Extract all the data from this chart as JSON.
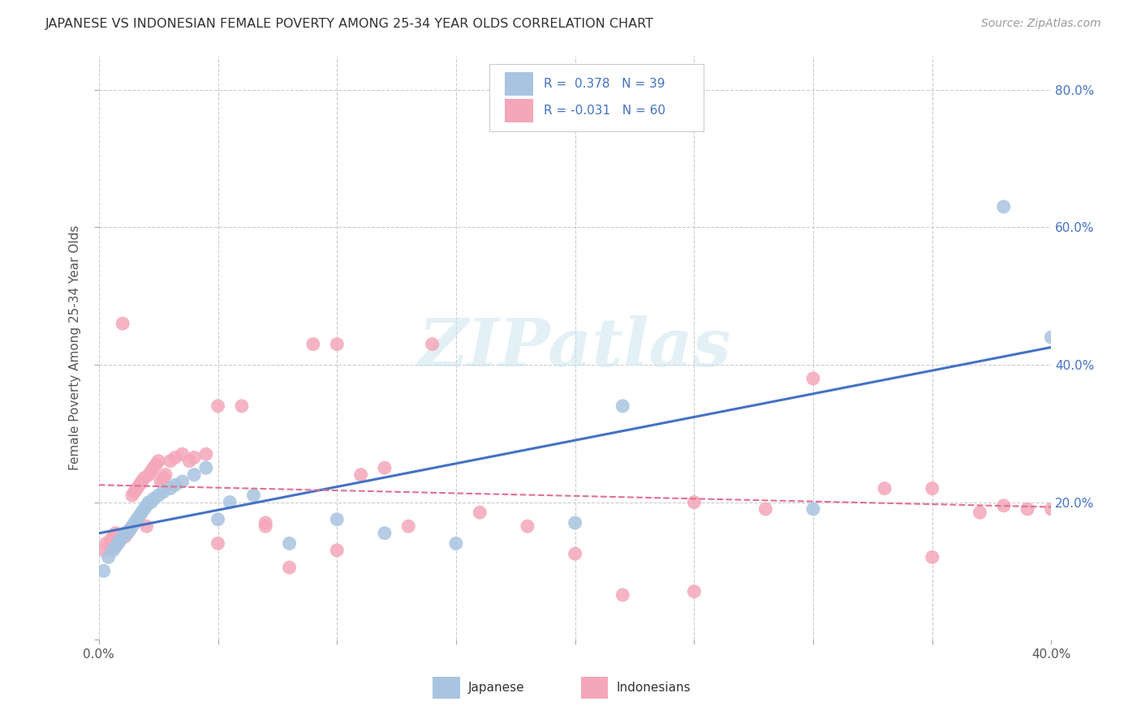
{
  "title": "JAPANESE VS INDONESIAN FEMALE POVERTY AMONG 25-34 YEAR OLDS CORRELATION CHART",
  "source": "Source: ZipAtlas.com",
  "ylabel": "Female Poverty Among 25-34 Year Olds",
  "xlim": [
    0.0,
    0.4
  ],
  "ylim": [
    0.0,
    0.85
  ],
  "yticks": [
    0.0,
    0.2,
    0.4,
    0.6,
    0.8
  ],
  "ytick_labels_right": [
    "",
    "20.0%",
    "40.0%",
    "60.0%",
    "80.0%"
  ],
  "xticks": [
    0.0,
    0.05,
    0.1,
    0.15,
    0.2,
    0.25,
    0.3,
    0.35,
    0.4
  ],
  "xtick_labels": [
    "0.0%",
    "",
    "",
    "",
    "",
    "",
    "",
    "",
    "40.0%"
  ],
  "japanese_color": "#a8c4e0",
  "indonesian_color": "#f4a7b9",
  "trendline_japanese_color": "#4472c4",
  "trendline_indonesian_color": "#e07090",
  "watermark_text": "ZIPatlas",
  "japanese_x": [
    0.002,
    0.004,
    0.006,
    0.007,
    0.008,
    0.009,
    0.01,
    0.011,
    0.012,
    0.013,
    0.014,
    0.015,
    0.016,
    0.017,
    0.018,
    0.019,
    0.02,
    0.021,
    0.022,
    0.023,
    0.025,
    0.027,
    0.03,
    0.032,
    0.035,
    0.04,
    0.045,
    0.05,
    0.055,
    0.065,
    0.08,
    0.1,
    0.12,
    0.15,
    0.2,
    0.22,
    0.3,
    0.38,
    0.4
  ],
  "japanese_y": [
    0.1,
    0.12,
    0.13,
    0.135,
    0.14,
    0.145,
    0.15,
    0.155,
    0.155,
    0.16,
    0.165,
    0.17,
    0.175,
    0.18,
    0.185,
    0.19,
    0.195,
    0.2,
    0.2,
    0.205,
    0.21,
    0.215,
    0.22,
    0.225,
    0.23,
    0.24,
    0.25,
    0.175,
    0.2,
    0.21,
    0.14,
    0.175,
    0.155,
    0.14,
    0.17,
    0.34,
    0.19,
    0.63,
    0.44
  ],
  "indonesian_x": [
    0.002,
    0.003,
    0.005,
    0.006,
    0.007,
    0.008,
    0.009,
    0.01,
    0.011,
    0.012,
    0.013,
    0.014,
    0.015,
    0.016,
    0.017,
    0.018,
    0.019,
    0.02,
    0.021,
    0.022,
    0.023,
    0.024,
    0.025,
    0.026,
    0.027,
    0.028,
    0.03,
    0.032,
    0.035,
    0.038,
    0.04,
    0.045,
    0.05,
    0.06,
    0.07,
    0.08,
    0.09,
    0.1,
    0.11,
    0.12,
    0.13,
    0.14,
    0.16,
    0.18,
    0.2,
    0.22,
    0.25,
    0.28,
    0.3,
    0.33,
    0.35,
    0.37,
    0.38,
    0.39,
    0.4,
    0.05,
    0.07,
    0.1,
    0.25,
    0.35
  ],
  "indonesian_y": [
    0.13,
    0.14,
    0.145,
    0.15,
    0.155,
    0.14,
    0.145,
    0.46,
    0.15,
    0.155,
    0.16,
    0.21,
    0.215,
    0.22,
    0.225,
    0.23,
    0.235,
    0.165,
    0.24,
    0.245,
    0.25,
    0.255,
    0.26,
    0.23,
    0.235,
    0.24,
    0.26,
    0.265,
    0.27,
    0.26,
    0.265,
    0.27,
    0.14,
    0.34,
    0.165,
    0.105,
    0.43,
    0.43,
    0.24,
    0.25,
    0.165,
    0.43,
    0.185,
    0.165,
    0.125,
    0.065,
    0.2,
    0.19,
    0.38,
    0.22,
    0.22,
    0.185,
    0.195,
    0.19,
    0.19,
    0.34,
    0.17,
    0.13,
    0.07,
    0.12
  ],
  "legend_text_1": "R =  0.378   N = 39",
  "legend_text_2": "R = -0.031   N = 60",
  "bottom_label_japanese": "Japanese",
  "bottom_label_indonesian": "Indonesians"
}
